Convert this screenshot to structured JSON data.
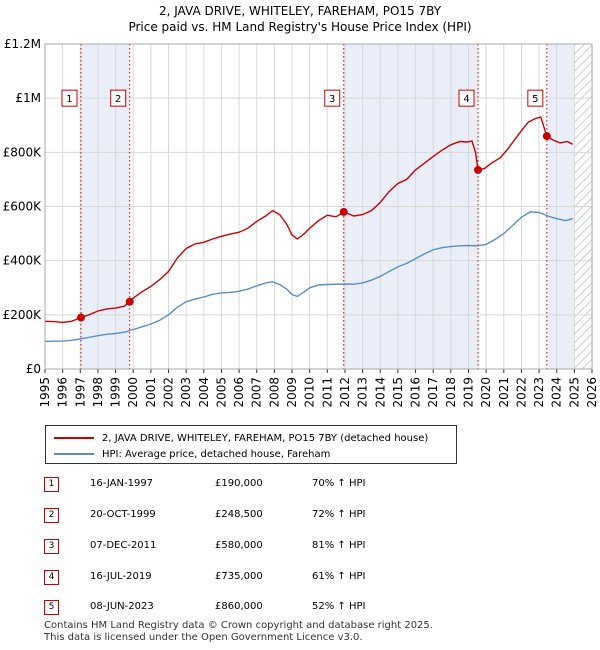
{
  "header": {
    "title": "2, JAVA DRIVE, WHITELEY, FAREHAM, PO15 7BY",
    "subtitle": "Price paid vs. HM Land Registry's House Price Index (HPI)"
  },
  "colors": {
    "property": "#cc0000",
    "hpi": "#5b8ec6",
    "shade": "#e9eef9",
    "hatch": "#c8d0dc"
  },
  "chart_data": {
    "type": "line",
    "xlim": [
      1995,
      2026
    ],
    "ylim": [
      0,
      1200000
    ],
    "x_ticks": [
      "1995",
      "1996",
      "1997",
      "1998",
      "1999",
      "2000",
      "2001",
      "2002",
      "2003",
      "2004",
      "2005",
      "2006",
      "2007",
      "2008",
      "2009",
      "2010",
      "2011",
      "2012",
      "2013",
      "2014",
      "2015",
      "2016",
      "2017",
      "2018",
      "2019",
      "2020",
      "2021",
      "2022",
      "2023",
      "2024",
      "2025",
      "2026"
    ],
    "y_ticks": [
      {
        "value": 0,
        "label": "£0"
      },
      {
        "value": 200000,
        "label": "£200K"
      },
      {
        "value": 400000,
        "label": "£400K"
      },
      {
        "value": 600000,
        "label": "£600K"
      },
      {
        "value": 800000,
        "label": "£800K"
      },
      {
        "value": 1000000,
        "label": "£1M"
      },
      {
        "value": 1200000,
        "label": "£1.2M"
      }
    ],
    "grid": true,
    "shaded_periods": [
      [
        1997.04,
        1999.8
      ],
      [
        2011.93,
        2019.54
      ],
      [
        2023.44,
        2025.0
      ]
    ],
    "future_hatch_from": 2025.0,
    "series": [
      {
        "name": "2, JAVA DRIVE, WHITELEY, FAREHAM, PO15 7BY (detached house)",
        "color": "#cc0000",
        "points": [
          [
            1995.0,
            176000
          ],
          [
            1995.5,
            175000
          ],
          [
            1996.0,
            172000
          ],
          [
            1996.5,
            176000
          ],
          [
            1997.04,
            190000
          ],
          [
            1997.5,
            200000
          ],
          [
            1998.0,
            214000
          ],
          [
            1998.5,
            222000
          ],
          [
            1999.0,
            225000
          ],
          [
            1999.5,
            232000
          ],
          [
            1999.8,
            248500
          ],
          [
            2000.0,
            262000
          ],
          [
            2000.5,
            285000
          ],
          [
            2001.0,
            305000
          ],
          [
            2001.5,
            330000
          ],
          [
            2002.0,
            360000
          ],
          [
            2002.5,
            410000
          ],
          [
            2003.0,
            445000
          ],
          [
            2003.5,
            462000
          ],
          [
            2004.0,
            468000
          ],
          [
            2004.5,
            480000
          ],
          [
            2005.0,
            490000
          ],
          [
            2005.5,
            498000
          ],
          [
            2006.0,
            505000
          ],
          [
            2006.5,
            520000
          ],
          [
            2007.0,
            545000
          ],
          [
            2007.5,
            565000
          ],
          [
            2007.9,
            585000
          ],
          [
            2008.3,
            570000
          ],
          [
            2008.7,
            535000
          ],
          [
            2009.0,
            495000
          ],
          [
            2009.3,
            480000
          ],
          [
            2009.7,
            500000
          ],
          [
            2010.0,
            520000
          ],
          [
            2010.5,
            548000
          ],
          [
            2011.0,
            568000
          ],
          [
            2011.5,
            562000
          ],
          [
            2011.93,
            580000
          ],
          [
            2012.5,
            565000
          ],
          [
            2013.0,
            570000
          ],
          [
            2013.5,
            585000
          ],
          [
            2014.0,
            615000
          ],
          [
            2014.5,
            655000
          ],
          [
            2015.0,
            685000
          ],
          [
            2015.5,
            700000
          ],
          [
            2016.0,
            735000
          ],
          [
            2016.5,
            760000
          ],
          [
            2017.0,
            785000
          ],
          [
            2017.5,
            808000
          ],
          [
            2018.0,
            828000
          ],
          [
            2018.5,
            840000
          ],
          [
            2018.9,
            838000
          ],
          [
            2019.2,
            842000
          ],
          [
            2019.4,
            800000
          ],
          [
            2019.54,
            735000
          ],
          [
            2019.9,
            740000
          ],
          [
            2020.3,
            760000
          ],
          [
            2020.8,
            780000
          ],
          [
            2021.2,
            810000
          ],
          [
            2021.6,
            845000
          ],
          [
            2022.0,
            880000
          ],
          [
            2022.4,
            912000
          ],
          [
            2022.8,
            925000
          ],
          [
            2023.1,
            930000
          ],
          [
            2023.44,
            860000
          ],
          [
            2023.8,
            845000
          ],
          [
            2024.2,
            835000
          ],
          [
            2024.6,
            840000
          ],
          [
            2024.9,
            830000
          ]
        ]
      },
      {
        "name": "HPI: Average price, detached house, Fareham",
        "color": "#5b8ec6",
        "points": [
          [
            1995.0,
            102000
          ],
          [
            1995.5,
            102500
          ],
          [
            1996.0,
            103000
          ],
          [
            1996.5,
            106000
          ],
          [
            1997.0,
            111000
          ],
          [
            1997.5,
            117000
          ],
          [
            1998.0,
            123000
          ],
          [
            1998.5,
            128000
          ],
          [
            1999.0,
            131000
          ],
          [
            1999.5,
            136000
          ],
          [
            2000.0,
            146000
          ],
          [
            2000.5,
            156000
          ],
          [
            2001.0,
            166000
          ],
          [
            2001.5,
            180000
          ],
          [
            2002.0,
            200000
          ],
          [
            2002.5,
            228000
          ],
          [
            2003.0,
            248000
          ],
          [
            2003.5,
            258000
          ],
          [
            2004.0,
            266000
          ],
          [
            2004.5,
            276000
          ],
          [
            2005.0,
            281000
          ],
          [
            2005.5,
            283000
          ],
          [
            2006.0,
            287000
          ],
          [
            2006.5,
            295000
          ],
          [
            2007.0,
            307000
          ],
          [
            2007.5,
            318000
          ],
          [
            2007.9,
            322000
          ],
          [
            2008.3,
            312000
          ],
          [
            2008.7,
            295000
          ],
          [
            2009.0,
            275000
          ],
          [
            2009.3,
            268000
          ],
          [
            2009.7,
            285000
          ],
          [
            2010.0,
            300000
          ],
          [
            2010.5,
            310000
          ],
          [
            2011.0,
            312000
          ],
          [
            2011.5,
            313000
          ],
          [
            2012.0,
            314000
          ],
          [
            2012.5,
            313000
          ],
          [
            2013.0,
            318000
          ],
          [
            2013.5,
            328000
          ],
          [
            2014.0,
            342000
          ],
          [
            2014.5,
            360000
          ],
          [
            2015.0,
            377000
          ],
          [
            2015.5,
            390000
          ],
          [
            2016.0,
            407000
          ],
          [
            2016.5,
            425000
          ],
          [
            2017.0,
            440000
          ],
          [
            2017.5,
            448000
          ],
          [
            2018.0,
            452000
          ],
          [
            2018.5,
            455000
          ],
          [
            2019.0,
            456000
          ],
          [
            2019.5,
            455000
          ],
          [
            2020.0,
            460000
          ],
          [
            2020.5,
            478000
          ],
          [
            2021.0,
            500000
          ],
          [
            2021.5,
            530000
          ],
          [
            2022.0,
            560000
          ],
          [
            2022.5,
            580000
          ],
          [
            2023.0,
            578000
          ],
          [
            2023.5,
            565000
          ],
          [
            2024.0,
            555000
          ],
          [
            2024.5,
            548000
          ],
          [
            2024.9,
            555000
          ]
        ]
      }
    ],
    "sales": [
      {
        "label": "1",
        "x": 1997.04,
        "y": 190000,
        "date": "16-JAN-1997",
        "price": "£190,000",
        "hpi": "70% ↑ HPI"
      },
      {
        "label": "2",
        "x": 1999.8,
        "y": 248500,
        "date": "20-OCT-1999",
        "price": "£248,500",
        "hpi": "72% ↑ HPI"
      },
      {
        "label": "3",
        "x": 2011.93,
        "y": 580000,
        "date": "07-DEC-2011",
        "price": "£580,000",
        "hpi": "81% ↑ HPI"
      },
      {
        "label": "4",
        "x": 2019.54,
        "y": 735000,
        "date": "16-JUL-2019",
        "price": "£735,000",
        "hpi": "61% ↑ HPI"
      },
      {
        "label": "5",
        "x": 2023.44,
        "y": 860000,
        "date": "08-JUN-2023",
        "price": "£860,000",
        "hpi": "52% ↑ HPI"
      }
    ],
    "marker_box_value": 1000000
  },
  "legend": {
    "property_label": "2, JAVA DRIVE, WHITELEY, FAREHAM, PO15 7BY (detached house)",
    "hpi_label": "HPI: Average price, detached house, Fareham"
  },
  "footer": {
    "line1": "Contains HM Land Registry data © Crown copyright and database right 2025.",
    "line2": "This data is licensed under the Open Government Licence v3.0."
  }
}
